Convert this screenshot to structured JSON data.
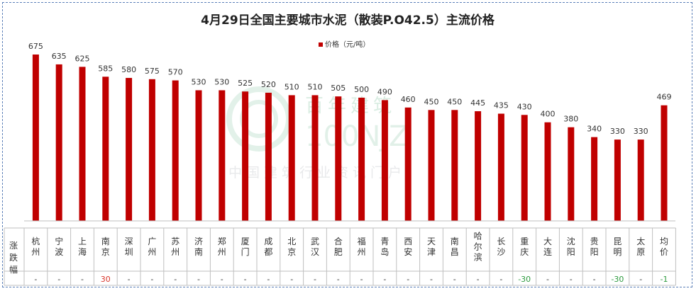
{
  "title": "4月29日全国主要城市水泥（散装P.O42.5）主流价格",
  "watermark": {
    "brand": "百年建筑",
    "code": "100NJZ",
    "tagline": "中国建筑行业资讯门户"
  },
  "table_header": {
    "row_label_chars": [
      "涨",
      "跌",
      "幅"
    ]
  },
  "chart_data": {
    "type": "bar",
    "title": "4月29日全国主要城市水泥（散装P.O42.5）主流价格",
    "legend": [
      "价格（元/吨）"
    ],
    "legend_position": "top-center",
    "bar_color": "#c00000",
    "categories": [
      "杭州",
      "宁波",
      "上海",
      "南京",
      "深圳",
      "广州",
      "苏州",
      "济南",
      "郑州",
      "厦门",
      "成都",
      "北京",
      "武汉",
      "合肥",
      "福州",
      "青岛",
      "西安",
      "天津",
      "南昌",
      "哈尔滨",
      "长沙",
      "重庆",
      "大连",
      "沈阳",
      "贵阳",
      "昆明",
      "太原",
      "均价"
    ],
    "series": [
      {
        "name": "价格（元/吨）",
        "values": [
          675,
          635,
          625,
          585,
          580,
          575,
          570,
          530,
          530,
          525,
          520,
          510,
          510,
          505,
          500,
          490,
          460,
          450,
          450,
          445,
          435,
          430,
          400,
          380,
          340,
          330,
          330,
          469
        ]
      }
    ],
    "changes": [
      "-",
      "-",
      "-",
      "30",
      "-",
      "-",
      "-",
      "-",
      "-",
      "-",
      "-",
      "-",
      "-",
      "-",
      "-",
      "-",
      "-",
      "-",
      "-",
      "-",
      "-",
      "-30",
      "-",
      "-",
      "-",
      "-30",
      "-",
      "-1"
    ],
    "ylim": [
      0,
      700
    ],
    "grid": false
  }
}
